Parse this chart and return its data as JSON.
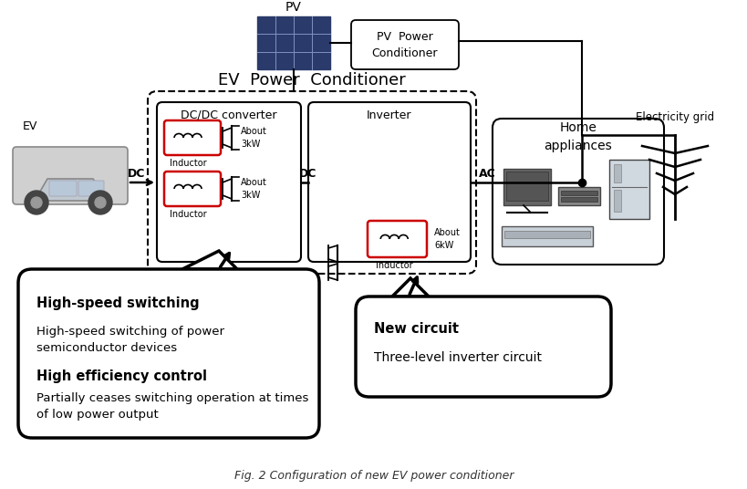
{
  "title": "Fig. 2 Configuration of new EV power conditioner",
  "ev_power_conditioner_label": "EV  Power  Conditioner",
  "pv_label": "PV",
  "pv_power_conditioner_label": "PV  Power\nConditioner",
  "electricity_grid_label": "Electricity grid",
  "dc_dc_converter_label": "DC/DC converter",
  "inverter_label": "Inverter",
  "home_appliances_label": "Home\nappliances",
  "ev_label": "EV",
  "dc_label1": "DC",
  "dc_label2": "DC",
  "ac_label": "AC",
  "inductor_label1": "Inductor",
  "inductor_label2": "Inductor",
  "inductor_label3": "Inductor",
  "about_3kw_1": "About\n3kW",
  "about_3kw_2": "About\n3kW",
  "about_6kw": "About\n6kW",
  "callout1_title": "High-speed switching",
  "callout1_text1": "High-speed switching of power\nsemiconductor devices",
  "callout1_title2": "High efficiency control",
  "callout1_text2": "Partially ceases switching operation at times\nof low power output",
  "callout2_title": "New circuit",
  "callout2_text": "Three-level inverter circuit",
  "bg_color": "#ffffff"
}
